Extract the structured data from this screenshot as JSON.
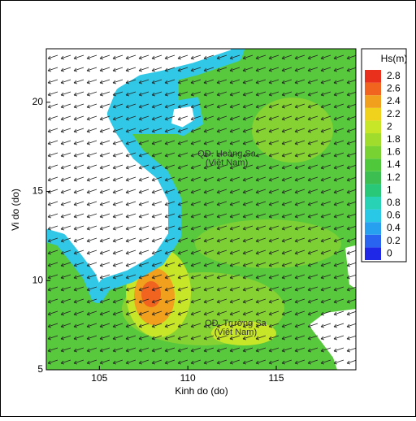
{
  "chart_data": {
    "type": "map",
    "xlabel": "Kinh do (do)",
    "ylabel": "Vi do (do)",
    "xlim": [
      102,
      119.5
    ],
    "ylim": [
      5,
      23
    ],
    "xticks": [
      105,
      110,
      115
    ],
    "yticks": [
      5,
      10,
      15,
      20
    ],
    "annotations": [
      {
        "lines": [
          "QĐ. Hoàng Sa",
          "(Việt Nam)"
        ],
        "x": 112.2,
        "y": 17.1
      },
      {
        "lines": [
          "QĐ. Trường Sa",
          "(Việt Nam)"
        ],
        "x": 112.7,
        "y": 7.6
      }
    ],
    "colorbar": {
      "title": "Hs(m)",
      "ticks": [
        0,
        0.2,
        0.4,
        0.6,
        0.8,
        1,
        1.2,
        1.4,
        1.6,
        1.8,
        2,
        2.2,
        2.4,
        2.6,
        2.8
      ],
      "colors": [
        "#1e28e6",
        "#2864f0",
        "#28a0f0",
        "#28c8e6",
        "#28d2b4",
        "#28c878",
        "#3cbe50",
        "#50c83c",
        "#78d232",
        "#a0dc2c",
        "#c8e628",
        "#f0d21c",
        "#f0a01c",
        "#f06420",
        "#e8301c"
      ]
    }
  }
}
